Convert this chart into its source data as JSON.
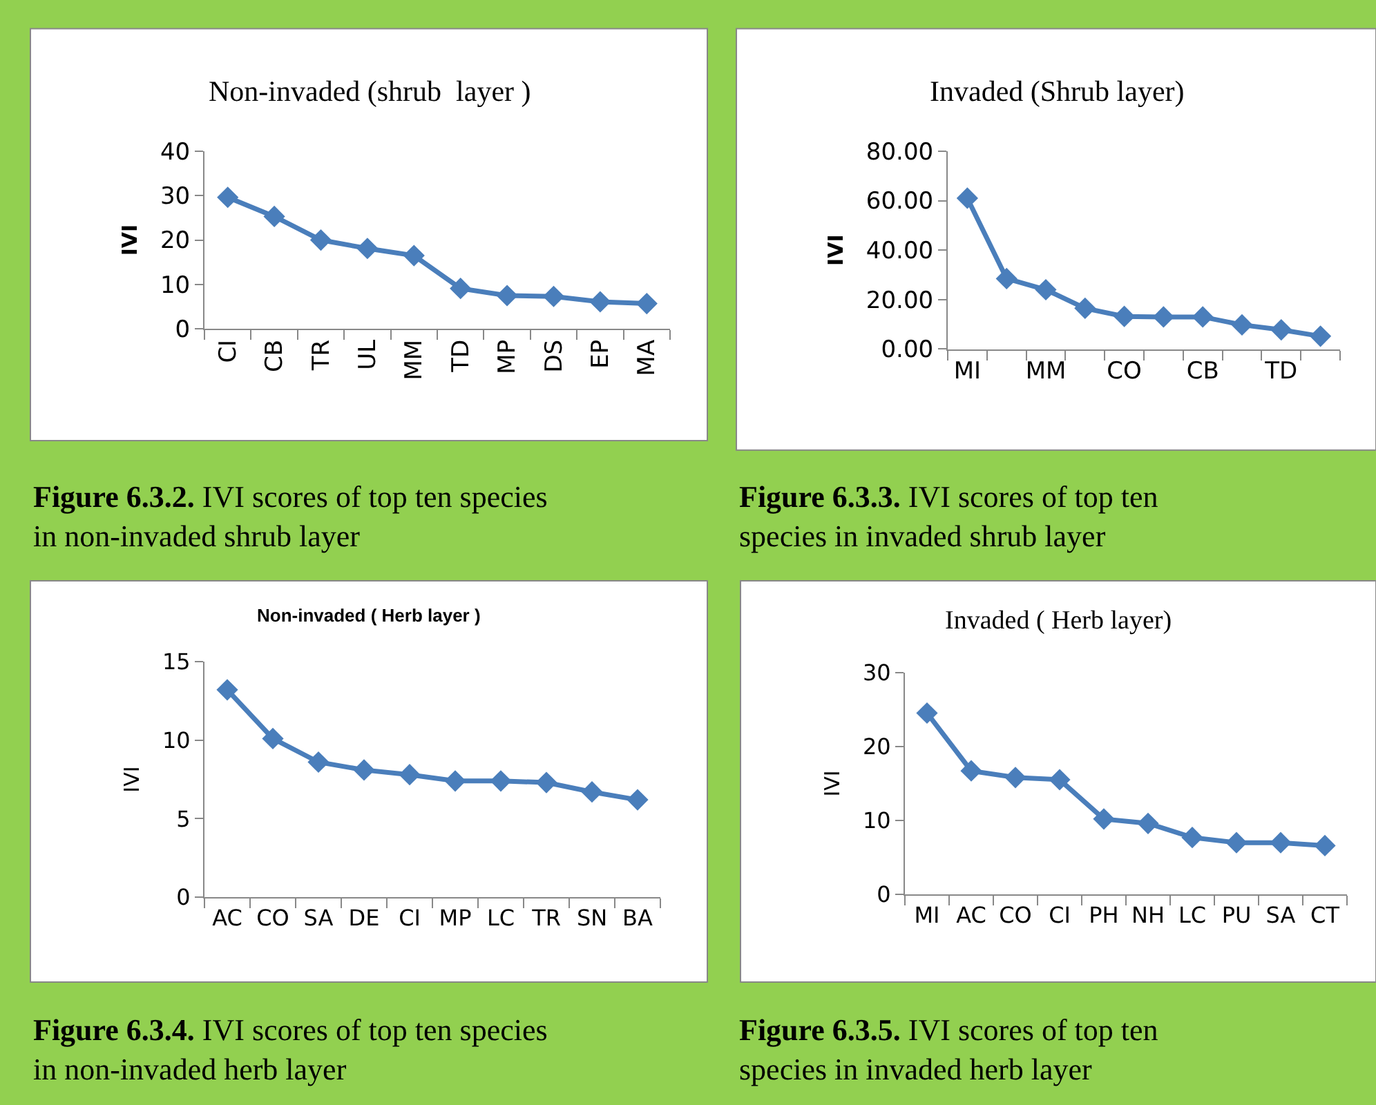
{
  "chart_data": [
    {
      "type": "line",
      "title": "Non-invaded (shrub  layer )",
      "ylabel": "IVI",
      "categories": [
        "CI",
        "CB",
        "TR",
        "UL",
        "MM",
        "TD",
        "MP",
        "DS",
        "EP",
        "MA"
      ],
      "series": [
        {
          "color": "#4a7ebb",
          "values": [
            29.6,
            25.3,
            20.0,
            18.1,
            16.5,
            9.1,
            7.5,
            7.3,
            6.1,
            5.7
          ]
        }
      ],
      "ylim": [
        0,
        40
      ],
      "yticks": [
        0,
        10,
        20,
        30,
        40
      ],
      "marker": "diamond",
      "line_style": "solid",
      "annotations": [
        "Figure 6.3.2.",
        "IVI scores of top ten species\nin non-invaded shrub layer"
      ]
    },
    {
      "type": "line",
      "title": "Invaded (Shrub layer)",
      "ylabel": "IVI",
      "categories": [
        "MI",
        null,
        "MM",
        null,
        "CO",
        null,
        "CB",
        null,
        "TD",
        null
      ],
      "series": [
        {
          "color": "#4a7ebb",
          "values": [
            61.0,
            28.5,
            24.0,
            16.5,
            13.2,
            13.0,
            13.0,
            9.8,
            7.8,
            5.2
          ]
        }
      ],
      "ylim": [
        0,
        80
      ],
      "yticks": [
        {
          "value": 0,
          "label": "0.00"
        },
        {
          "value": 20,
          "label": "20.00"
        },
        {
          "value": 40,
          "label": "40.00"
        },
        {
          "value": 60,
          "label": "60.00"
        },
        {
          "value": 80,
          "label": "80.00"
        }
      ],
      "marker": "diamond",
      "line_style": "solid",
      "annotations": [
        "Figure 6.3.3.",
        "IVI scores of top ten\nspecies in invaded shrub layer"
      ]
    },
    {
      "type": "line",
      "title": "Non-invaded ( Herb layer )",
      "ylabel": "IVI",
      "categories": [
        "AC",
        "CO",
        "SA",
        "DE",
        "CI",
        "MP",
        "LC",
        "TR",
        "SN",
        "BA"
      ],
      "series": [
        {
          "color": "#4a7ebb",
          "values": [
            13.2,
            10.1,
            8.6,
            8.1,
            7.8,
            7.4,
            7.4,
            7.3,
            6.7,
            6.2
          ]
        }
      ],
      "ylim": [
        0,
        15
      ],
      "yticks": [
        0,
        5,
        10,
        15
      ],
      "marker": "diamond",
      "line_style": "solid",
      "annotations": [
        "Figure 6.3.4.",
        "IVI scores of top ten species\nin non-invaded herb layer"
      ]
    },
    {
      "type": "line",
      "title": "Invaded ( Herb layer)",
      "ylabel": "IVI",
      "categories": [
        "MI",
        "AC",
        "CO",
        "CI",
        "PH",
        "NH",
        "LC",
        "PU",
        "SA",
        "CT"
      ],
      "series": [
        {
          "color": "#4a7ebb",
          "values": [
            24.5,
            16.7,
            15.8,
            15.5,
            10.2,
            9.6,
            7.7,
            7.0,
            7.0,
            6.6
          ]
        }
      ],
      "ylim": [
        0,
        30
      ],
      "yticks": [
        0,
        10,
        20,
        30
      ],
      "marker": "diamond",
      "line_style": "solid",
      "annotations": [
        "Figure 6.3.5.",
        "IVI scores of top ten\nspecies in invaded herb layer"
      ]
    }
  ]
}
